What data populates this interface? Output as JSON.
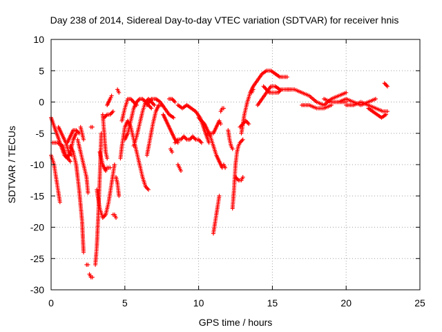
{
  "chart_data": {
    "type": "scatter",
    "title": "Day 238 of 2014, Sidereal Day-to-day VTEC variation (SDTVAR) for receiver hnis",
    "xlabel": "GPS time / hours",
    "ylabel": "SDTVAR / TECUs",
    "xlim": [
      0,
      25
    ],
    "ylim": [
      -30,
      10
    ],
    "xticks": [
      0,
      5,
      10,
      15,
      20,
      25
    ],
    "yticks": [
      -30,
      -25,
      -20,
      -15,
      -10,
      -5,
      0,
      5,
      10
    ],
    "grid": true,
    "series": [
      {
        "name": "SDTVAR",
        "color": "#ff0000",
        "marker": "plus",
        "tracks": [
          {
            "x": [
              0.0,
              0.3,
              0.6,
              0.9,
              1.1,
              1.3,
              1.5,
              1.7
            ],
            "y": [
              -2.5,
              -4.5,
              -6.5,
              -8.5,
              -9.0,
              -8.0,
              -6.0,
              -5.0
            ]
          },
          {
            "x": [
              0.1,
              0.4,
              0.8,
              1.0,
              1.3
            ],
            "y": [
              -6.5,
              -6.5,
              -7.0,
              -8.5,
              -9.5
            ]
          },
          {
            "x": [
              0.0,
              0.2,
              0.4,
              0.6
            ],
            "y": [
              -8.5,
              -10.0,
              -13.0,
              -16.0
            ]
          },
          {
            "x": [
              0.5,
              0.7,
              1.0,
              1.2,
              1.4
            ],
            "y": [
              -4.0,
              -5.0,
              -6.5,
              -8.0,
              -8.5
            ]
          },
          {
            "x": [
              1.1,
              1.3,
              1.5,
              1.7,
              1.9
            ],
            "y": [
              -6.5,
              -5.5,
              -4.5,
              -4.5,
              -5.0
            ]
          },
          {
            "x": [
              1.3,
              1.5,
              1.7,
              1.9,
              2.1,
              2.2
            ],
            "y": [
              -7.0,
              -8.0,
              -10.0,
              -14.0,
              -19.0,
              -24.0
            ]
          },
          {
            "x": [
              1.8,
              2.0,
              2.2,
              2.4,
              2.5
            ],
            "y": [
              -6.0,
              -8.0,
              -10.0,
              -12.0,
              -14.5
            ]
          },
          {
            "x": [
              2.0,
              2.1,
              2.2
            ],
            "y": [
              -4.0,
              -5.0,
              -6.0
            ]
          },
          {
            "x": [
              2.4,
              2.5
            ],
            "y": [
              -26.0,
              -26.0
            ]
          },
          {
            "x": [
              2.6,
              2.7,
              2.8
            ],
            "y": [
              -27.5,
              -28.0,
              -28.0
            ]
          },
          {
            "x": [
              2.7,
              2.8
            ],
            "y": [
              -4.0,
              -4.0
            ]
          },
          {
            "x": [
              3.0,
              3.1,
              3.2,
              3.3,
              3.4
            ],
            "y": [
              -26.0,
              -23.0,
              -18.0,
              -12.0,
              -5.0
            ]
          },
          {
            "x": [
              3.1,
              3.3,
              3.5,
              3.7,
              3.9,
              4.1,
              4.3
            ],
            "y": [
              -14.0,
              -17.0,
              -18.5,
              -18.0,
              -16.0,
              -13.0,
              -10.0
            ]
          },
          {
            "x": [
              3.3,
              3.5,
              3.7,
              3.8,
              4.0
            ],
            "y": [
              -8.0,
              -10.0,
              -11.0,
              -10.5,
              -10.5
            ]
          },
          {
            "x": [
              3.5,
              3.6,
              3.7,
              3.8
            ],
            "y": [
              -2.0,
              -5.0,
              -8.0,
              -9.0
            ]
          },
          {
            "x": [
              3.8,
              4.0,
              4.1
            ],
            "y": [
              -0.5,
              0.5,
              1.0
            ]
          },
          {
            "x": [
              3.6,
              3.8,
              4.0,
              4.2
            ],
            "y": [
              -2.5,
              -2.0,
              -2.0,
              -1.5
            ]
          },
          {
            "x": [
              4.2,
              4.3,
              4.4
            ],
            "y": [
              -18.0,
              -18.0,
              -18.5
            ]
          },
          {
            "x": [
              4.4,
              4.5,
              4.6
            ],
            "y": [
              -12.0,
              -13.0,
              -15.0
            ]
          },
          {
            "x": [
              4.5,
              4.6
            ],
            "y": [
              2.0,
              1.5
            ]
          },
          {
            "x": [
              4.7,
              4.8,
              5.0,
              5.2,
              5.4,
              5.6,
              5.8,
              6.0,
              6.2,
              6.4,
              6.6
            ],
            "y": [
              -9.0,
              -7.0,
              -4.0,
              -3.0,
              -4.0,
              -6.0,
              -8.0,
              -10.0,
              -12.0,
              -13.5,
              -14.0
            ]
          },
          {
            "x": [
              4.8,
              5.0,
              5.2,
              5.4,
              5.6,
              5.8
            ],
            "y": [
              -3.0,
              -1.0,
              0.5,
              0.5,
              0.0,
              -0.5
            ]
          },
          {
            "x": [
              5.0,
              5.2,
              5.4,
              5.6,
              5.8,
              6.0,
              6.2,
              6.4,
              6.6,
              6.8
            ],
            "y": [
              -6.0,
              -5.0,
              -3.0,
              -1.0,
              0.0,
              0.5,
              0.5,
              0.0,
              -0.5,
              -1.0
            ]
          },
          {
            "x": [
              5.6,
              5.8,
              6.0,
              6.2,
              6.4,
              6.6,
              6.8,
              7.0
            ],
            "y": [
              -7.0,
              -5.5,
              -3.5,
              -1.5,
              0.0,
              0.5,
              0.0,
              -0.5
            ]
          },
          {
            "x": [
              6.5,
              6.7,
              6.9,
              7.1,
              7.3,
              7.5
            ],
            "y": [
              -8.5,
              -6.0,
              -3.5,
              -1.5,
              -0.5,
              -0.5
            ]
          },
          {
            "x": [
              6.5,
              6.8,
              7.1,
              7.4,
              7.7,
              8.0,
              8.3
            ],
            "y": [
              -0.5,
              0.5,
              0.5,
              0.0,
              -1.0,
              -2.0,
              -2.5
            ]
          },
          {
            "x": [
              7.6,
              7.8,
              8.0,
              8.2,
              8.4,
              8.6
            ],
            "y": [
              -2.0,
              -3.0,
              -4.0,
              -5.0,
              -6.0,
              -6.5
            ]
          },
          {
            "x": [
              8.0,
              8.2,
              8.4
            ],
            "y": [
              0.5,
              0.5,
              0.0
            ]
          },
          {
            "x": [
              8.1,
              8.2
            ],
            "y": [
              -7.5,
              -8.0
            ]
          },
          {
            "x": [
              8.6,
              8.7,
              8.8
            ],
            "y": [
              -10.0,
              -10.5,
              -11.0
            ]
          },
          {
            "x": [
              8.4,
              8.6,
              8.8,
              9.0,
              9.2,
              9.4,
              9.6,
              9.8,
              10.0,
              10.2
            ],
            "y": [
              -6.5,
              -6.0,
              -6.0,
              -5.5,
              -6.0,
              -6.0,
              -5.5,
              -6.0,
              -6.0,
              -6.5
            ]
          },
          {
            "x": [
              8.6,
              8.9,
              9.2,
              9.5,
              9.8,
              10.1,
              10.4,
              10.7
            ],
            "y": [
              -0.5,
              -1.0,
              -0.5,
              -1.0,
              -1.5,
              -2.5,
              -4.5,
              -6.5
            ]
          },
          {
            "x": [
              10.0,
              10.2,
              10.4,
              10.6,
              10.8,
              11.0,
              11.2,
              11.4,
              11.6
            ],
            "y": [
              -2.5,
              -3.0,
              -3.5,
              -4.5,
              -5.5,
              -7.0,
              -8.5,
              -9.5,
              -10.5
            ]
          },
          {
            "x": [
              10.6,
              10.8,
              11.0,
              11.2,
              11.4,
              11.5
            ],
            "y": [
              -5.0,
              -5.0,
              -5.0,
              -4.0,
              -3.0,
              -3.5
            ]
          },
          {
            "x": [
              11.5,
              11.6,
              11.7
            ],
            "y": [
              -1.5,
              -1.0,
              -1.0
            ]
          },
          {
            "x": [
              11.0,
              11.1,
              11.2,
              11.3,
              11.4
            ],
            "y": [
              -21.0,
              -19.5,
              -18.0,
              -16.5,
              -15.0
            ]
          },
          {
            "x": [
              11.7,
              11.8
            ],
            "y": [
              -10.0,
              -10.5
            ]
          },
          {
            "x": [
              12.0,
              12.1,
              12.2,
              12.3
            ],
            "y": [
              -4.5,
              -6.0,
              -7.0,
              -7.5
            ]
          },
          {
            "x": [
              12.3,
              12.4,
              12.5,
              12.6,
              12.7,
              12.8,
              13.0
            ],
            "y": [
              -17.0,
              -14.0,
              -10.0,
              -8.0,
              -7.0,
              -6.5,
              -6.0
            ]
          },
          {
            "x": [
              12.5,
              12.7,
              12.9,
              13.0
            ],
            "y": [
              -12.0,
              -12.5,
              -12.5,
              -12.0
            ]
          },
          {
            "x": [
              12.8,
              13.0,
              13.2,
              13.4
            ],
            "y": [
              -4.0,
              -3.5,
              -3.0,
              -3.5
            ]
          },
          {
            "x": [
              12.9,
              13.1,
              13.3,
              13.5,
              13.7,
              14.0,
              14.3,
              14.6,
              14.9,
              15.2,
              15.5,
              15.8,
              16.0
            ],
            "y": [
              -5.0,
              -2.0,
              0.0,
              1.5,
              2.5,
              3.5,
              4.5,
              5.0,
              5.0,
              4.5,
              4.0,
              4.0,
              4.0
            ]
          },
          {
            "x": [
              13.5,
              13.6,
              13.7
            ],
            "y": [
              1.5,
              1.5,
              2.0
            ]
          },
          {
            "x": [
              14.0,
              14.3,
              14.6,
              14.9,
              15.2,
              15.5
            ],
            "y": [
              -0.5,
              0.5,
              1.5,
              2.5,
              2.5,
              2.0
            ]
          },
          {
            "x": [
              14.4,
              14.6,
              14.8,
              15.0,
              15.2,
              15.4,
              15.6,
              15.8,
              16.0,
              16.2
            ],
            "y": [
              2.5,
              2.0,
              1.5,
              1.5,
              1.5,
              1.5,
              2.0,
              2.0,
              2.0,
              2.0
            ]
          },
          {
            "x": [
              16.0,
              16.5,
              17.0,
              17.5,
              18.0,
              18.5,
              19.0,
              19.5,
              20.0
            ],
            "y": [
              2.0,
              2.0,
              1.5,
              1.0,
              0.0,
              -0.5,
              0.5,
              1.0,
              1.5
            ]
          },
          {
            "x": [
              17.0,
              17.5,
              18.0,
              18.5,
              19.0
            ],
            "y": [
              -0.5,
              -0.5,
              -1.0,
              -1.0,
              -0.5
            ]
          },
          {
            "x": [
              18.5,
              19.0,
              19.5,
              20.0
            ],
            "y": [
              0.5,
              0.0,
              0.0,
              0.0
            ]
          },
          {
            "x": [
              19.5,
              20.0,
              20.5,
              21.0,
              21.5,
              22.0
            ],
            "y": [
              0.0,
              0.5,
              0.0,
              -0.5,
              0.0,
              0.5
            ]
          },
          {
            "x": [
              20.0,
              20.5,
              21.0,
              21.5,
              22.0,
              22.5,
              22.8
            ],
            "y": [
              -0.5,
              -0.5,
              0.0,
              -0.5,
              -1.0,
              -1.5,
              -1.5
            ]
          },
          {
            "x": [
              21.5,
              21.8,
              22.1,
              22.4,
              22.7
            ],
            "y": [
              -1.0,
              -1.5,
              -2.0,
              -2.5,
              -2.0
            ]
          },
          {
            "x": [
              22.6,
              22.8
            ],
            "y": [
              3.0,
              2.5
            ]
          }
        ]
      }
    ]
  }
}
